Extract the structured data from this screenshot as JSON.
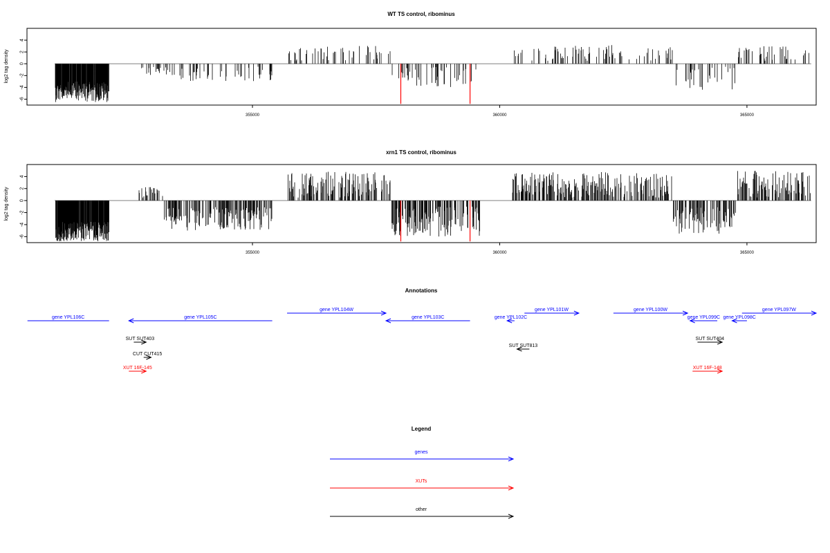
{
  "chart_data": [
    {
      "type": "bar",
      "title": "WT TS control, ribominus",
      "ylabel": "log2 tag density",
      "xlabel": "",
      "xlim": [
        350440,
        366400
      ],
      "ylim": [
        -7,
        6
      ],
      "yticks": [
        -6,
        -4,
        -2,
        0,
        2,
        4
      ],
      "xticks": [
        355000,
        360000,
        365000
      ],
      "xtick_labels": [
        "355000",
        "360000",
        "365000"
      ],
      "grid": false,
      "colors": {
        "bars": "#000000",
        "markers": "#ff0000",
        "baseline": "#808080"
      },
      "marker_positions": [
        358000,
        359400
      ],
      "marker_ylim": [
        -6.8,
        0
      ],
      "segments": [
        {
          "start": 351000,
          "end": 352100,
          "min": -6.5,
          "max": -3.0
        },
        {
          "start": 352700,
          "end": 353200,
          "min": -2.0,
          "max": -0.5
        },
        {
          "start": 353200,
          "end": 355400,
          "min": -3.0,
          "max": -0.5
        },
        {
          "start": 355700,
          "end": 357800,
          "min": 0.5,
          "max": 3.2
        },
        {
          "start": 357800,
          "end": 359600,
          "min": -4.0,
          "max": -0.5
        },
        {
          "start": 360200,
          "end": 363500,
          "min": 0.5,
          "max": 3.2
        },
        {
          "start": 363500,
          "end": 364800,
          "min": -4.5,
          "max": -0.5
        },
        {
          "start": 364800,
          "end": 366300,
          "min": 0.5,
          "max": 3.0
        }
      ]
    },
    {
      "type": "bar",
      "title": "xrn1 TS control, ribominus",
      "ylabel": "log2 tag density",
      "xlabel": "",
      "xlim": [
        350440,
        366400
      ],
      "ylim": [
        -7,
        6
      ],
      "yticks": [
        -6,
        -4,
        -2,
        0,
        2,
        4
      ],
      "xticks": [
        355000,
        360000,
        365000
      ],
      "xtick_labels": [
        "355000",
        "360000",
        "365000"
      ],
      "grid": false,
      "colors": {
        "bars": "#000000",
        "markers": "#ff0000",
        "baseline": "#808080"
      },
      "marker_positions": [
        358000,
        359400
      ],
      "marker_ylim": [
        -6.8,
        0
      ],
      "segments": [
        {
          "start": 351000,
          "end": 352100,
          "min": -6.8,
          "max": -3.5
        },
        {
          "start": 352700,
          "end": 353200,
          "min": 0.5,
          "max": 2.3
        },
        {
          "start": 353200,
          "end": 355400,
          "min": -5.0,
          "max": -1.0
        },
        {
          "start": 355700,
          "end": 357800,
          "min": 0.5,
          "max": 4.8
        },
        {
          "start": 357800,
          "end": 359600,
          "min": -6.0,
          "max": -1.0
        },
        {
          "start": 360200,
          "end": 363500,
          "min": 0.5,
          "max": 4.8
        },
        {
          "start": 363500,
          "end": 364800,
          "min": -5.5,
          "max": -1.0
        },
        {
          "start": 364800,
          "end": 366300,
          "min": 0.5,
          "max": 5.0
        }
      ]
    },
    {
      "type": "other",
      "title": "Annotations",
      "xlim": [
        350440,
        366400
      ],
      "features": [
        {
          "label": "gene YPL106C",
          "kind": "gene",
          "start": 350450,
          "end": 352100,
          "strand": "-",
          "row": 0
        },
        {
          "label": "gene YPL105C",
          "kind": "gene",
          "start": 352500,
          "end": 355400,
          "strand": "-",
          "row": 0
        },
        {
          "label": "gene YPL104W",
          "kind": "gene",
          "start": 355700,
          "end": 357700,
          "strand": "+",
          "row": 1
        },
        {
          "label": "gene YPL103C",
          "kind": "gene",
          "start": 357700,
          "end": 359400,
          "strand": "-",
          "row": 0
        },
        {
          "label": "gene YPL102C",
          "kind": "gene",
          "start": 360150,
          "end": 360300,
          "strand": "-",
          "row": 0
        },
        {
          "label": "gene YPL101W",
          "kind": "gene",
          "start": 360500,
          "end": 361600,
          "strand": "+",
          "row": 1
        },
        {
          "label": "gene YPL100W",
          "kind": "gene",
          "start": 362300,
          "end": 363800,
          "strand": "+",
          "row": 1
        },
        {
          "label": "gene YPL099C",
          "kind": "gene",
          "start": 363850,
          "end": 364400,
          "strand": "-",
          "row": 0
        },
        {
          "label": "gene YPL098C",
          "kind": "gene",
          "start": 364700,
          "end": 365000,
          "strand": "-",
          "row": 0
        },
        {
          "label": "gene YPL097W",
          "kind": "gene",
          "start": 364900,
          "end": 366400,
          "strand": "+",
          "row": 1
        },
        {
          "label": "SUT SUT403",
          "kind": "other",
          "start": 352600,
          "end": 352850,
          "strand": "+",
          "row": 2
        },
        {
          "label": "CUT CUT415",
          "kind": "other",
          "start": 352800,
          "end": 352950,
          "strand": "+",
          "row": 3
        },
        {
          "label": "XUT 16F-145",
          "kind": "xut",
          "start": 352500,
          "end": 352850,
          "strand": "+",
          "row": 4
        },
        {
          "label": "SUT SUT813",
          "kind": "other",
          "start": 360350,
          "end": 360600,
          "strand": "-",
          "row": 2.4
        },
        {
          "label": "SUT SUT404",
          "kind": "other",
          "start": 364000,
          "end": 364500,
          "strand": "+",
          "row": 2
        },
        {
          "label": "XUT 16F-148",
          "kind": "xut",
          "start": 363900,
          "end": 364500,
          "strand": "+",
          "row": 4
        }
      ]
    },
    {
      "type": "other",
      "title": "Legend",
      "entries": [
        {
          "label": "genes",
          "kind": "gene"
        },
        {
          "label": "XUTs",
          "kind": "xut"
        },
        {
          "label": "other",
          "kind": "other"
        }
      ]
    }
  ],
  "colors": {
    "gene": "#0000ff",
    "xut": "#ff0000",
    "other": "#000000"
  }
}
